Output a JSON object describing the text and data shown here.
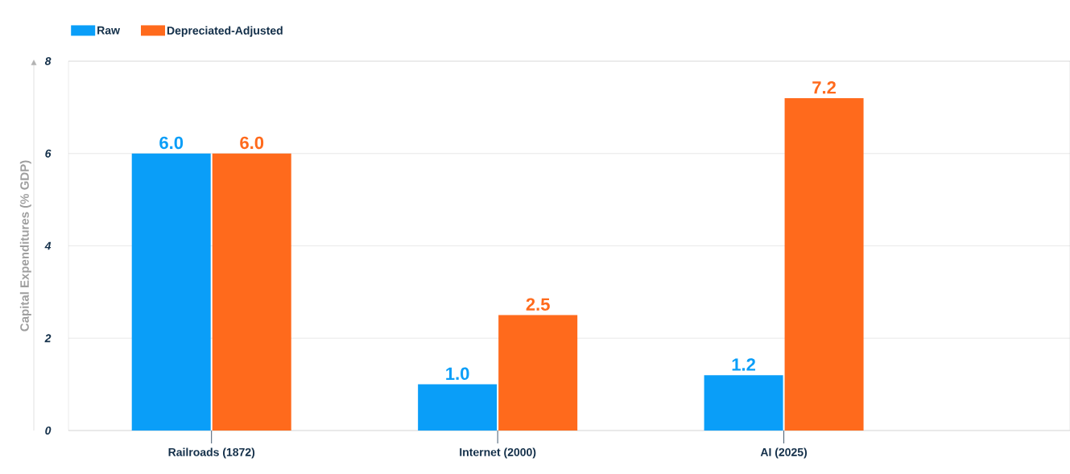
{
  "chart_data": {
    "type": "bar",
    "ylabel": "Capital Expenditures (% GDP)",
    "categories": [
      "Railroads (1872)",
      "Internet (2000)",
      "AI (2025)"
    ],
    "series": [
      {
        "name": "Raw",
        "color": "#0a9ef8",
        "values": [
          6.0,
          1.0,
          1.2
        ],
        "value_labels": [
          "6.0",
          "1.0",
          "1.2"
        ]
      },
      {
        "name": "Depreciated-Adjusted",
        "color": "#ff6a1c",
        "values": [
          6.0,
          2.5,
          7.2
        ],
        "value_labels": [
          "6.0",
          "2.5",
          "7.2"
        ]
      }
    ],
    "ylim": [
      0,
      8
    ],
    "yticks": [
      0,
      2,
      4,
      6,
      8
    ],
    "grid": "y",
    "legend": "top left"
  }
}
